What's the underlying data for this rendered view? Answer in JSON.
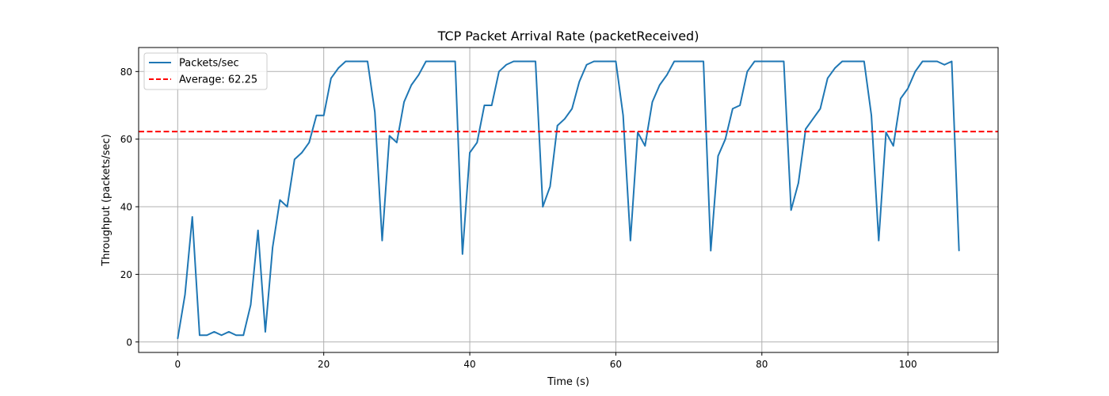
{
  "chart_data": {
    "type": "line",
    "title": "TCP Packet Arrival Rate (packetReceived)",
    "xlabel": "Time (s)",
    "ylabel": "Throughput (packets/sec)",
    "xlim": [
      -5.35,
      112.35
    ],
    "ylim": [
      -3.1,
      87.1
    ],
    "xticks": [
      0,
      20,
      40,
      60,
      80,
      100
    ],
    "yticks": [
      0,
      20,
      40,
      60,
      80
    ],
    "grid": true,
    "legend_position": "top-left",
    "series": [
      {
        "name": "Packets/sec",
        "color": "#1f77b4",
        "style": "solid",
        "x": [
          0,
          1,
          2,
          3,
          4,
          5,
          6,
          7,
          8,
          9,
          10,
          11,
          12,
          13,
          14,
          15,
          16,
          17,
          18,
          19,
          20,
          21,
          22,
          23,
          24,
          25,
          26,
          27,
          28,
          29,
          30,
          31,
          32,
          33,
          34,
          35,
          36,
          37,
          38,
          39,
          40,
          41,
          42,
          43,
          44,
          45,
          46,
          47,
          48,
          49,
          50,
          51,
          52,
          53,
          54,
          55,
          56,
          57,
          58,
          59,
          60,
          61,
          62,
          63,
          64,
          65,
          66,
          67,
          68,
          69,
          70,
          71,
          72,
          73,
          74,
          75,
          76,
          77,
          78,
          79,
          80,
          81,
          82,
          83,
          84,
          85,
          86,
          87,
          88,
          89,
          90,
          91,
          92,
          93,
          94,
          95,
          96,
          97,
          98,
          99,
          100,
          101,
          102,
          103,
          104,
          105,
          106,
          107
        ],
        "values": [
          1,
          14,
          37,
          2,
          2,
          3,
          2,
          3,
          2,
          2,
          11,
          33,
          3,
          28,
          42,
          40,
          54,
          56,
          59,
          67,
          67,
          78,
          81,
          83,
          83,
          83,
          83,
          68,
          30,
          61,
          59,
          71,
          76,
          79,
          83,
          83,
          83,
          83,
          83,
          26,
          56,
          59,
          70,
          70,
          80,
          82,
          83,
          83,
          83,
          83,
          40,
          46,
          64,
          66,
          69,
          77,
          82,
          83,
          83,
          83,
          83,
          67,
          30,
          62,
          58,
          71,
          76,
          79,
          83,
          83,
          83,
          83,
          83,
          27,
          55,
          60,
          69,
          70,
          80,
          83,
          83,
          83,
          83,
          83,
          39,
          47,
          63,
          66,
          69,
          78,
          81,
          83,
          83,
          83,
          83,
          67,
          30,
          62,
          58,
          72,
          75,
          80,
          83,
          83,
          83,
          82,
          83,
          27
        ]
      },
      {
        "name": "Average: 62.25",
        "color": "#ff0000",
        "style": "dashed",
        "y": 62.25
      }
    ]
  }
}
